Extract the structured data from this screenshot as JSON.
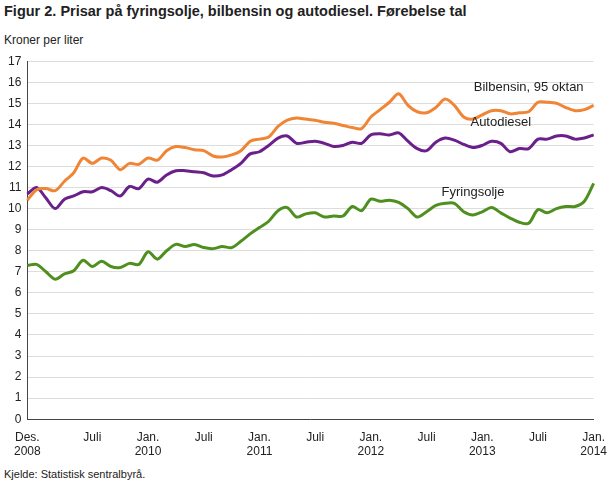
{
  "chart_data": {
    "type": "line",
    "title": "Figur 2. Prisar på fyringsolje, bilbensin og autodiesel. Førebelse tal",
    "y_label": "Kroner per liter",
    "source": "Kjelde: Statistisk sentralbyrå.",
    "categories": [
      "Des. 2008",
      null,
      null,
      null,
      null,
      null,
      null,
      "Juli",
      null,
      null,
      null,
      null,
      null,
      "Jan. 2010",
      null,
      null,
      null,
      null,
      null,
      "Juli",
      null,
      null,
      null,
      null,
      null,
      "Jan. 2011",
      null,
      null,
      null,
      null,
      null,
      "Juli",
      null,
      null,
      null,
      null,
      null,
      "Jan. 2012",
      null,
      null,
      null,
      null,
      null,
      "Juli",
      null,
      null,
      null,
      null,
      null,
      "Jan. 2013",
      null,
      null,
      null,
      null,
      null,
      "Juli",
      null,
      null,
      null,
      null,
      null,
      "Jan. 2014"
    ],
    "series": [
      {
        "name": "Bilbensin, 95 oktan",
        "color": "#ef8535",
        "values": [
          10.4,
          10.9,
          10.95,
          10.85,
          11.3,
          11.7,
          12.4,
          12.15,
          12.4,
          12.3,
          11.85,
          12.15,
          12.1,
          12.4,
          12.3,
          12.75,
          12.95,
          12.9,
          12.8,
          12.75,
          12.5,
          12.45,
          12.55,
          12.75,
          13.2,
          13.3,
          13.4,
          13.9,
          14.2,
          14.3,
          14.25,
          14.2,
          14.1,
          14.05,
          13.95,
          13.85,
          13.8,
          14.35,
          14.7,
          15.05,
          15.45,
          14.9,
          14.6,
          14.55,
          14.8,
          15.2,
          14.9,
          14.35,
          14.25,
          14.45,
          14.65,
          14.65,
          14.5,
          14.55,
          14.6,
          15.05,
          15.05,
          15.0,
          14.8,
          14.65,
          14.7,
          14.9
        ]
      },
      {
        "name": "Autodiesel",
        "color": "#6a1f8a",
        "values": [
          10.7,
          11.0,
          10.5,
          10.0,
          10.45,
          10.6,
          10.8,
          10.8,
          11.0,
          10.85,
          10.6,
          11.05,
          10.95,
          11.4,
          11.25,
          11.6,
          11.8,
          11.8,
          11.75,
          11.7,
          11.55,
          11.6,
          11.85,
          12.15,
          12.6,
          12.7,
          13.0,
          13.35,
          13.45,
          13.1,
          13.15,
          13.2,
          13.1,
          12.95,
          13.0,
          13.15,
          13.1,
          13.5,
          13.55,
          13.5,
          13.6,
          13.2,
          12.85,
          12.75,
          13.15,
          13.35,
          13.25,
          13.05,
          12.9,
          13.0,
          13.2,
          13.1,
          12.7,
          12.85,
          12.85,
          13.3,
          13.3,
          13.45,
          13.45,
          13.3,
          13.35,
          13.5
        ]
      },
      {
        "name": "Fyringsolje",
        "color": "#4e8f1f",
        "values": [
          7.3,
          7.35,
          7.0,
          6.65,
          6.9,
          7.05,
          7.55,
          7.25,
          7.5,
          7.25,
          7.2,
          7.4,
          7.35,
          7.95,
          7.6,
          8.0,
          8.3,
          8.2,
          8.3,
          8.15,
          8.1,
          8.2,
          8.15,
          8.45,
          8.8,
          9.1,
          9.4,
          9.9,
          10.05,
          9.6,
          9.75,
          9.8,
          9.6,
          9.65,
          9.65,
          10.1,
          9.9,
          10.45,
          10.35,
          10.4,
          10.3,
          10.0,
          9.6,
          9.85,
          10.15,
          10.25,
          10.25,
          9.85,
          9.7,
          9.85,
          10.05,
          9.8,
          9.55,
          9.35,
          9.3,
          9.95,
          9.8,
          10.0,
          10.1,
          10.1,
          10.35,
          11.2
        ]
      }
    ],
    "ylim": [
      0,
      17
    ],
    "yticks": [
      0,
      1,
      2,
      3,
      4,
      5,
      6,
      7,
      8,
      9,
      10,
      11,
      12,
      13,
      14,
      15,
      16,
      17
    ],
    "grid": true
  }
}
